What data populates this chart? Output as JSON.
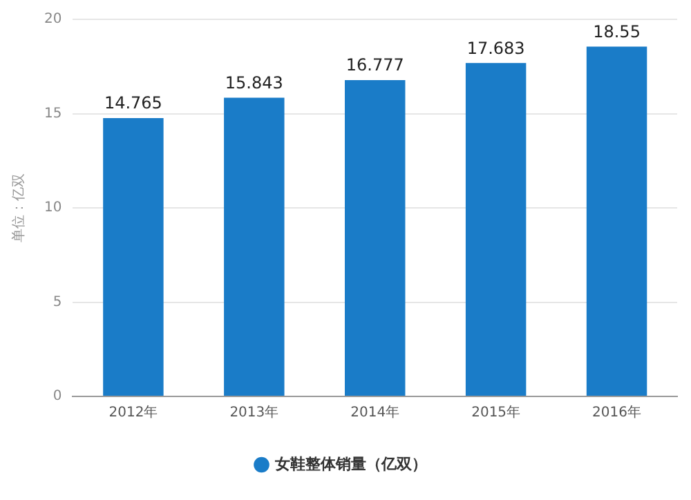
{
  "chart_data": {
    "type": "bar",
    "categories": [
      "2012年",
      "2013年",
      "2014年",
      "2015年",
      "2016年"
    ],
    "series": [
      {
        "name": "女鞋整体销量（亿双）",
        "color": "#1a7cc8",
        "values": [
          14.765,
          15.843,
          16.777,
          17.683,
          18.55
        ]
      }
    ],
    "ylabel": "单位：亿双",
    "ylim": [
      0,
      20
    ],
    "yticks": [
      0,
      5,
      10,
      15,
      20
    ],
    "grid": "y",
    "legend": "bottom",
    "data_labels": true
  }
}
